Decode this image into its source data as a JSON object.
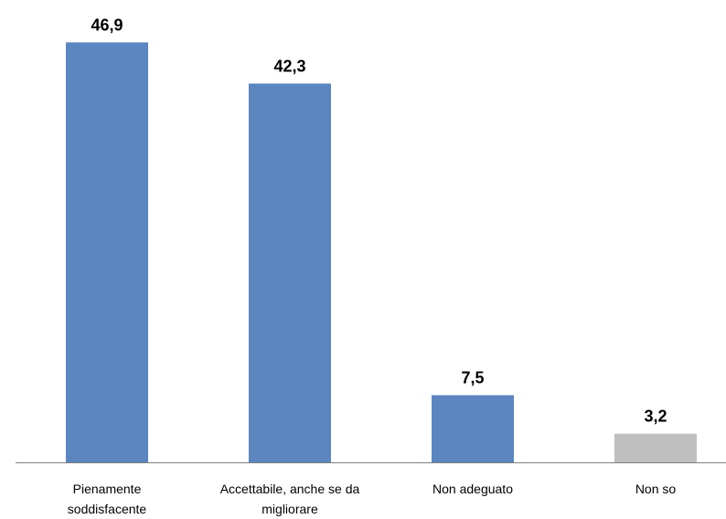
{
  "chart_data": {
    "type": "bar",
    "categories": [
      [
        "Pienamente",
        "soddisfacente"
      ],
      [
        "Accettabile, anche se da",
        "migliorare"
      ],
      [
        "Non adeguato"
      ],
      [
        "Non so"
      ]
    ],
    "values": [
      46.9,
      42.3,
      7.5,
      3.2
    ],
    "value_labels": [
      "46,9",
      "42,3",
      "7,5",
      "3,2"
    ],
    "bar_colors": [
      "#5b86c0",
      "#5b86c0",
      "#5b86c0",
      "#bfbfbf"
    ],
    "axis_color": "#808080",
    "title": "",
    "xlabel": "",
    "ylabel": "",
    "ylim": [
      0,
      50
    ],
    "grid": false,
    "legend": "none"
  }
}
